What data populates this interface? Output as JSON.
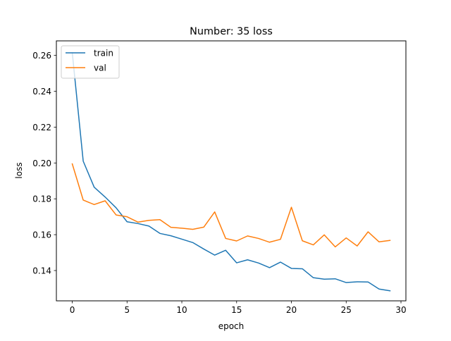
{
  "chart_data": {
    "type": "line",
    "title": "Number: 35 loss",
    "xlabel": "epoch",
    "ylabel": "loss",
    "xlim": [
      -1.45,
      30.45
    ],
    "ylim": [
      0.1231,
      0.2681
    ],
    "xticks": [
      0,
      5,
      10,
      15,
      20,
      25,
      30
    ],
    "xtick_labels": [
      "0",
      "5",
      "10",
      "15",
      "20",
      "25",
      "30"
    ],
    "yticks": [
      0.14,
      0.16,
      0.18,
      0.2,
      0.22,
      0.24,
      0.26
    ],
    "ytick_labels": [
      "0.14",
      "0.16",
      "0.18",
      "0.20",
      "0.22",
      "0.24",
      "0.26"
    ],
    "grid": false,
    "legend": "upper left",
    "x": [
      0,
      1,
      2,
      3,
      4,
      5,
      6,
      7,
      8,
      9,
      10,
      11,
      12,
      13,
      14,
      15,
      16,
      17,
      18,
      19,
      20,
      21,
      22,
      23,
      24,
      25,
      26,
      27,
      28,
      29
    ],
    "series": [
      {
        "name": "train",
        "color": "#1f77b4",
        "values": [
          0.2615,
          0.201,
          0.1865,
          0.181,
          0.175,
          0.1672,
          0.1662,
          0.1648,
          0.1607,
          0.1594,
          0.1575,
          0.1556,
          0.152,
          0.1486,
          0.1513,
          0.1443,
          0.146,
          0.1442,
          0.1416,
          0.1447,
          0.1412,
          0.141,
          0.136,
          0.1352,
          0.1354,
          0.1333,
          0.1337,
          0.1336,
          0.1297,
          0.1287
        ]
      },
      {
        "name": "val",
        "color": "#ff7f0e",
        "values": [
          0.1995,
          0.1793,
          0.1768,
          0.1789,
          0.171,
          0.17,
          0.167,
          0.168,
          0.1684,
          0.1641,
          0.1636,
          0.163,
          0.1642,
          0.1727,
          0.1579,
          0.1565,
          0.1593,
          0.1579,
          0.1558,
          0.1574,
          0.1753,
          0.1566,
          0.1543,
          0.1599,
          0.1532,
          0.1582,
          0.1537,
          0.1616,
          0.156,
          0.1568
        ]
      }
    ]
  }
}
